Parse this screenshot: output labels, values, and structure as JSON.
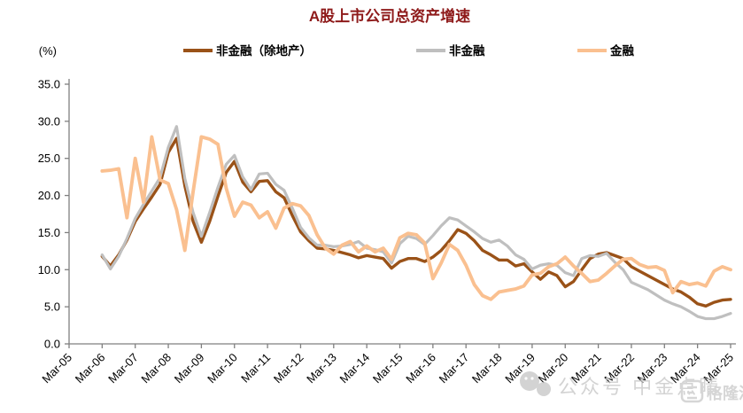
{
  "title": "A股上市公司总资产增速",
  "colors": {
    "title": "#8E1A1A",
    "axis": "#7F7F7F",
    "series_nonfin_ex_property": "#9A5218",
    "series_nonfin": "#BFBFBF",
    "series_financial": "#FAC090",
    "watermark": "#C9C9C9"
  },
  "y_axis": {
    "unit_label": "(%)",
    "min": 0,
    "max": 35,
    "step": 5
  },
  "x_axis": {
    "tick_labels": [
      "Mar-05",
      "Mar-06",
      "Mar-07",
      "Mar-08",
      "Mar-09",
      "Mar-10",
      "Mar-11",
      "Mar-12",
      "Mar-13",
      "Mar-14",
      "Mar-15",
      "Mar-16",
      "Mar-17",
      "Mar-18",
      "Mar-19",
      "Mar-20",
      "Mar-21",
      "Mar-22",
      "Mar-23",
      "Mar-24",
      "Mar-25"
    ]
  },
  "legend": {
    "items": [
      {
        "label": "非金融（除地产）",
        "color": "#9A5218"
      },
      {
        "label": "非金融",
        "color": "#BFBFBF"
      },
      {
        "label": "金融",
        "color": "#FAC090"
      }
    ]
  },
  "watermark": {
    "text": "公众号 中金点睛",
    "logo_text": "格隆汇"
  },
  "chart_data": {
    "type": "line",
    "title": "A股上市公司总资产增速",
    "ylabel": "(%)",
    "ylim": [
      0,
      35
    ],
    "grid": false,
    "legend_position": "top",
    "x_start": "Mar-06",
    "x_end": "Mar-25",
    "frequency": "quarterly",
    "points_per_series": 77,
    "series": [
      {
        "name": "非金融（除地产）",
        "color": "#9A5218",
        "values": [
          11.8,
          10.5,
          12.0,
          14.0,
          16.5,
          18.2,
          19.8,
          21.5,
          25.8,
          27.7,
          21.3,
          16.5,
          13.7,
          16.5,
          19.9,
          23.1,
          24.6,
          21.8,
          20.5,
          21.9,
          22.0,
          20.5,
          19.7,
          17.3,
          15.1,
          13.9,
          12.9,
          12.8,
          12.6,
          12.3,
          12.0,
          11.6,
          11.9,
          11.7,
          11.5,
          10.2,
          11.1,
          11.5,
          11.5,
          11.1,
          11.7,
          12.6,
          13.9,
          15.4,
          14.9,
          13.9,
          12.6,
          12.0,
          11.3,
          11.3,
          10.5,
          10.8,
          9.7,
          8.7,
          9.7,
          9.2,
          7.7,
          8.4,
          10.0,
          11.5,
          12.1,
          12.3,
          11.9,
          11.5,
          10.4,
          9.8,
          9.2,
          8.6,
          8.0,
          7.4,
          7.0,
          6.3,
          5.4,
          5.1,
          5.6,
          5.9,
          6.0
        ]
      },
      {
        "name": "非金融",
        "color": "#BFBFBF",
        "values": [
          12.0,
          10.1,
          11.8,
          14.2,
          16.9,
          18.8,
          20.6,
          22.4,
          26.5,
          29.3,
          22.3,
          17.7,
          14.5,
          17.7,
          21.1,
          24.2,
          25.4,
          22.5,
          20.8,
          22.9,
          23.0,
          21.5,
          20.7,
          18.3,
          15.7,
          14.3,
          13.3,
          13.3,
          13.1,
          13.2,
          13.4,
          13.8,
          12.9,
          12.7,
          12.4,
          10.9,
          13.5,
          14.5,
          14.2,
          13.4,
          14.6,
          15.9,
          17.0,
          16.7,
          15.9,
          15.1,
          14.2,
          13.7,
          14.0,
          13.2,
          12.0,
          11.4,
          10.1,
          10.6,
          10.8,
          10.6,
          9.6,
          9.2,
          11.5,
          11.9,
          11.8,
          12.2,
          11.0,
          10.0,
          8.3,
          7.8,
          7.3,
          6.6,
          5.9,
          5.4,
          5.0,
          4.4,
          3.7,
          3.4,
          3.4,
          3.7,
          4.1
        ]
      },
      {
        "name": "金融",
        "color": "#FAC090",
        "values": [
          23.3,
          23.4,
          23.6,
          17.0,
          25.0,
          19.1,
          27.9,
          22.1,
          21.6,
          18.1,
          12.6,
          20.5,
          27.9,
          27.6,
          26.9,
          21.0,
          17.2,
          19.1,
          18.7,
          17.0,
          17.8,
          15.6,
          18.3,
          18.9,
          18.6,
          17.3,
          14.7,
          12.9,
          12.1,
          13.3,
          13.8,
          12.4,
          13.2,
          12.4,
          12.9,
          11.4,
          14.3,
          14.9,
          14.7,
          13.6,
          8.8,
          10.9,
          13.4,
          12.6,
          10.6,
          8.0,
          6.5,
          6.0,
          7.0,
          7.2,
          7.4,
          7.8,
          9.3,
          9.5,
          10.4,
          10.8,
          11.7,
          10.5,
          9.5,
          8.4,
          8.6,
          9.5,
          10.5,
          11.4,
          11.5,
          10.7,
          10.3,
          10.4,
          9.9,
          6.9,
          8.4,
          8.0,
          8.2,
          7.8,
          9.8,
          10.4,
          10.0
        ]
      }
    ]
  }
}
